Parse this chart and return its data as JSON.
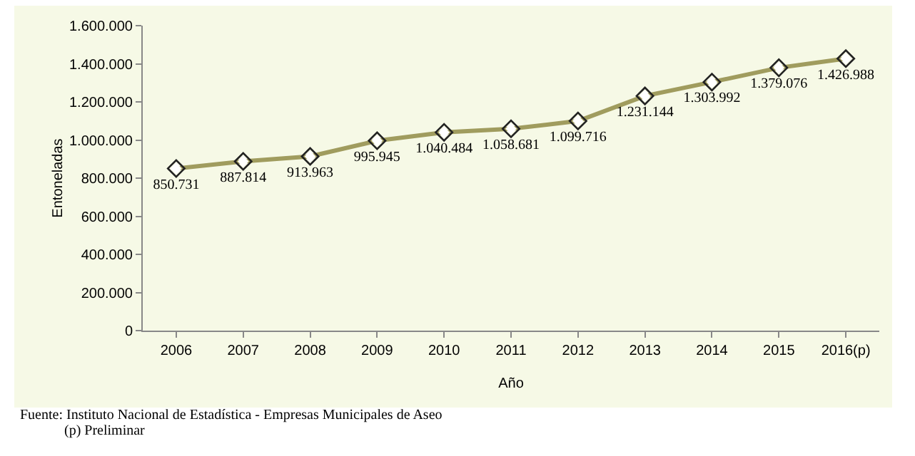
{
  "chart_data": {
    "type": "line",
    "xlabel": "Año",
    "ylabel": "Entoneladas",
    "categories": [
      "2006",
      "2007",
      "2008",
      "2009",
      "2010",
      "2011",
      "2012",
      "2013",
      "2014",
      "2015",
      "2016(p)"
    ],
    "series": [
      {
        "color": "#a09c5e",
        "values": [
          850731,
          887814,
          913963,
          995945,
          1040484,
          1058681,
          1099716,
          1231144,
          1303992,
          1379076,
          1426988
        ],
        "value_labels": [
          "850.731",
          "887.814",
          "913.963",
          "995.945",
          "1.040.484",
          "1.058.681",
          "1.099.716",
          "1.231.144",
          "1.303.992",
          "1.379.076",
          "1.426.988"
        ]
      }
    ],
    "ylim": [
      0,
      1600000
    ],
    "yticks": [
      0,
      {
        "value": 200000,
        "label": "200.000"
      },
      {
        "value": 400000,
        "label": "400.000"
      },
      {
        "value": 600000,
        "label": "600.000"
      },
      {
        "value": 800000,
        "label": "800.000"
      },
      {
        "value": 1000000,
        "label": "1.000.000"
      },
      {
        "value": 1200000,
        "label": "1.200.000"
      },
      {
        "value": 1400000,
        "label": "1.400.000"
      },
      {
        "value": 1600000,
        "label": "1.600.000"
      }
    ],
    "grid": false,
    "marker": "diamond",
    "line_style": "solid",
    "annotations": [
      "Fuente: Instituto Nacional de Estadística - Empresas Municipales de Aseo",
      "(p) Preliminar"
    ]
  }
}
